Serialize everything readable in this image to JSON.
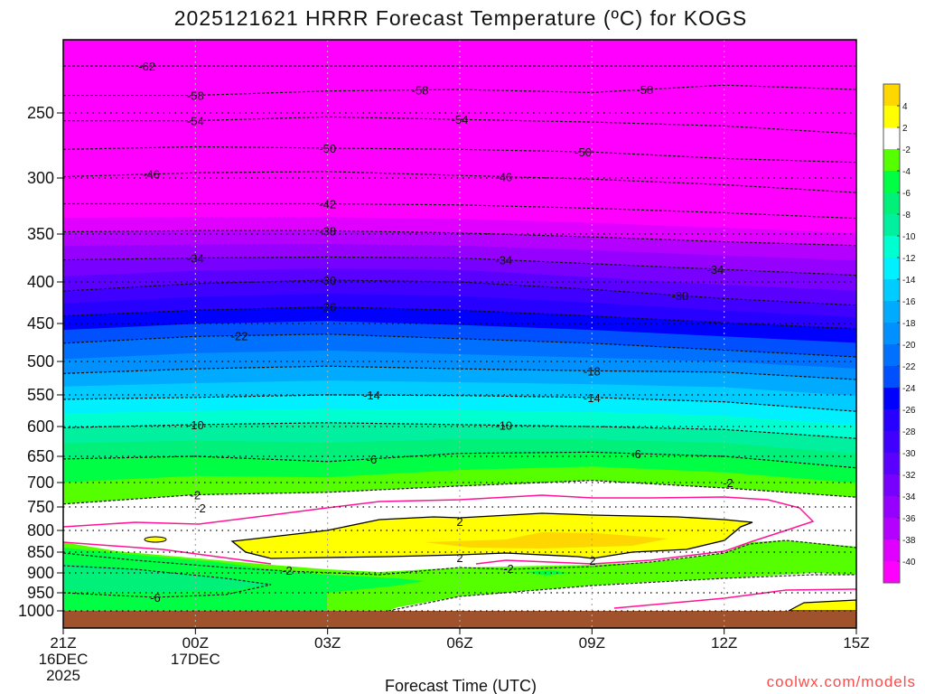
{
  "chart_data": {
    "type": "heatmap",
    "subtype": "time-pressure contour",
    "title": "2025121621 HRRR Forecast Temperature (ºC) for KOGS",
    "xlabel": "Forecast Time (UTC)",
    "ylabel": "",
    "x_hours_range": [
      0,
      18
    ],
    "xticks": [
      {
        "hour": 0,
        "lines": [
          "21Z",
          "16DEC",
          "2025"
        ]
      },
      {
        "hour": 3,
        "lines": [
          "00Z",
          "17DEC"
        ]
      },
      {
        "hour": 6,
        "lines": [
          "03Z"
        ]
      },
      {
        "hour": 9,
        "lines": [
          "06Z"
        ]
      },
      {
        "hour": 12,
        "lines": [
          "09Z"
        ]
      },
      {
        "hour": 15,
        "lines": [
          "12Z"
        ]
      },
      {
        "hour": 18,
        "lines": [
          "15Z"
        ]
      }
    ],
    "ylim_hPa": [
      200,
      1050
    ],
    "yticks": [
      "250",
      "300",
      "350",
      "400",
      "450",
      "500",
      "550",
      "600",
      "650",
      "700",
      "750",
      "800",
      "850",
      "900",
      "950",
      "1000"
    ],
    "isotherm_hours": [
      0,
      3,
      6,
      9,
      12,
      15,
      18
    ],
    "isotherms": [
      {
        "level": -62,
        "p": [
          218,
          218,
          218,
          218,
          218,
          218,
          218
        ]
      },
      {
        "level": -58,
        "p": [
          238,
          238,
          235,
          234,
          236,
          231,
          234
        ]
      },
      {
        "level": -54,
        "p": [
          256,
          256,
          253,
          255,
          257,
          260,
          266
        ]
      },
      {
        "level": -50,
        "p": [
          278,
          276,
          277,
          278,
          280,
          285,
          288
        ]
      },
      {
        "level": -46,
        "p": [
          299,
          296,
          295,
          298,
          301,
          306,
          313
        ]
      },
      {
        "level": -42,
        "p": [
          323,
          323,
          323,
          324,
          327,
          331,
          336
        ]
      },
      {
        "level": -38,
        "p": [
          348,
          347,
          347,
          349,
          353,
          358,
          362
        ]
      },
      {
        "level": -34,
        "p": [
          377,
          375,
          374,
          375,
          381,
          387,
          393
        ]
      },
      {
        "level": -30,
        "p": [
          411,
          402,
          398,
          400,
          409,
          420,
          428
        ]
      },
      {
        "level": -26,
        "p": [
          441,
          434,
          430,
          434,
          441,
          449,
          457
        ]
      },
      {
        "level": -22,
        "p": [
          476,
          467,
          464,
          470,
          476,
          485,
          494
        ]
      },
      {
        "level": -18,
        "p": [
          518,
          511,
          507,
          511,
          514,
          516,
          527
        ]
      },
      {
        "level": -14,
        "p": [
          557,
          554,
          550,
          551,
          554,
          561,
          576
        ]
      },
      {
        "level": -10,
        "p": [
          602,
          597,
          594,
          597,
          600,
          605,
          620
        ]
      },
      {
        "level": -6,
        "p": [
          655,
          650,
          660,
          645,
          643,
          650,
          672
        ]
      },
      {
        "level": -2,
        "p": [
          744,
          725,
          720,
          707,
          696,
          711,
          730
        ]
      }
    ],
    "low_level_labels": [
      "-2",
      "-2",
      "-2",
      "2",
      "2",
      "2",
      "-2",
      "-6"
    ],
    "colorbar": {
      "labels": [
        "4",
        "2",
        "-2",
        "-4",
        "-6",
        "-8",
        "-10",
        "-12",
        "-14",
        "-16",
        "-18",
        "-20",
        "-22",
        "-24",
        "-26",
        "-28",
        "-30",
        "-32",
        "-34",
        "-36",
        "-38",
        "-40"
      ],
      "colors": [
        "#ffd700",
        "#ffff00",
        "#ffffff",
        "#55ff00",
        "#00ff44",
        "#00f07a",
        "#00f0a0",
        "#00ffd0",
        "#00f0ff",
        "#00ccff",
        "#00aaff",
        "#0090ff",
        "#0070ff",
        "#0050ff",
        "#0000ff",
        "#2800ff",
        "#4000ff",
        "#5a00ff",
        "#7800ff",
        "#9600ff",
        "#b400ff",
        "#e000ff",
        "#ff00ff"
      ]
    },
    "freezing_line_color": "#ff1493",
    "ground_color": "#a0522d"
  },
  "watermark": "coolwx.com/models"
}
